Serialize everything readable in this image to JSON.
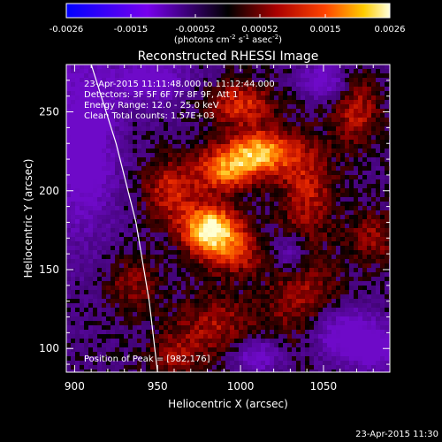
{
  "chart_data": {
    "type": "heatmap",
    "title": "Reconstructed RHESSI Image",
    "xlabel": "Heliocentric X (arcsec)",
    "ylabel": "Heliocentric Y (arcsec)",
    "xlim": [
      895,
      1090
    ],
    "ylim": [
      85,
      280
    ],
    "x_ticks": [
      900,
      950,
      1000,
      1050
    ],
    "y_ticks": [
      100,
      150,
      200,
      250
    ],
    "colorbar": {
      "range": [
        -0.0026,
        0.0026
      ],
      "ticks": [
        "-0.0026",
        "-0.0015",
        "-0.00052",
        "0.00052",
        "0.0015",
        "0.0026"
      ],
      "unit_main": "(photons cm",
      "unit_exp1": "-2",
      "unit_mid": " s",
      "unit_exp2": "-1",
      "unit_mid2": " asec",
      "unit_exp3": "-2",
      "unit_end": ")"
    },
    "annotations": [
      "23-Apr-2015 11:11:48.000 to 11:12:44.000",
      "Detectors: 3F 5F 6F 7F 8F 9F, Att 1",
      "Energy Range: 12.0 - 25.0 keV",
      "Clean      Total counts: 1.57E+03"
    ],
    "peak_label": "Position of Peak = [982,176]",
    "peak": [
      982,
      176
    ],
    "limb": [
      [
        910,
        280
      ],
      [
        925,
        230
      ],
      [
        937,
        180
      ],
      [
        945,
        130
      ],
      [
        950,
        85
      ]
    ],
    "sources": [
      {
        "x": 982,
        "y": 176,
        "sx": 12,
        "sy": 10,
        "amp": 1.0
      },
      {
        "x": 995,
        "y": 160,
        "sx": 14,
        "sy": 10,
        "amp": 0.45
      },
      {
        "x": 1012,
        "y": 224,
        "sx": 14,
        "sy": 10,
        "amp": 0.82
      },
      {
        "x": 990,
        "y": 213,
        "sx": 12,
        "sy": 10,
        "amp": 0.65
      },
      {
        "x": 958,
        "y": 200,
        "sx": 12,
        "sy": 14,
        "amp": 0.45
      },
      {
        "x": 1000,
        "y": 255,
        "sx": 14,
        "sy": 10,
        "amp": 0.5
      },
      {
        "x": 1040,
        "y": 200,
        "sx": 12,
        "sy": 24,
        "amp": 0.42
      },
      {
        "x": 1038,
        "y": 130,
        "sx": 16,
        "sy": 20,
        "amp": 0.35
      },
      {
        "x": 985,
        "y": 115,
        "sx": 18,
        "sy": 14,
        "amp": 0.35
      },
      {
        "x": 1070,
        "y": 250,
        "sx": 10,
        "sy": 16,
        "amp": 0.4
      },
      {
        "x": 1080,
        "y": 170,
        "sx": 10,
        "sy": 12,
        "amp": 0.32
      },
      {
        "x": 935,
        "y": 140,
        "sx": 12,
        "sy": 12,
        "amp": 0.3
      },
      {
        "x": 960,
        "y": 95,
        "sx": 12,
        "sy": 10,
        "amp": 0.3
      }
    ],
    "negatives": [
      {
        "x": 905,
        "y": 230,
        "sx": 14,
        "sy": 40,
        "amp": 0.55
      },
      {
        "x": 1060,
        "y": 110,
        "sx": 14,
        "sy": 12,
        "amp": 0.5
      },
      {
        "x": 1010,
        "y": 95,
        "sx": 10,
        "sy": 8,
        "amp": 0.45
      },
      {
        "x": 945,
        "y": 270,
        "sx": 16,
        "sy": 10,
        "amp": 0.5
      },
      {
        "x": 1080,
        "y": 100,
        "sx": 10,
        "sy": 10,
        "amp": 0.45
      },
      {
        "x": 1050,
        "y": 270,
        "sx": 10,
        "sy": 8,
        "amp": 0.45
      },
      {
        "x": 1030,
        "y": 160,
        "sx": 8,
        "sy": 8,
        "amp": 0.35
      }
    ]
  },
  "footer_timestamp": "23-Apr-2015 11:30"
}
